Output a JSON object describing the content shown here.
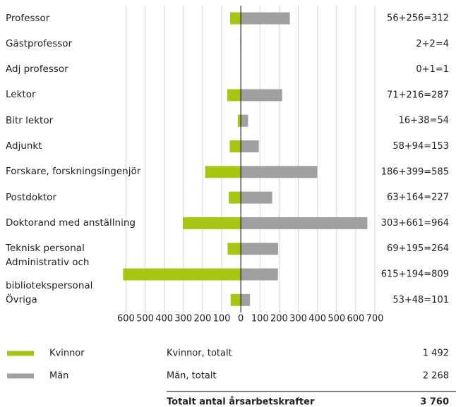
{
  "chart_data": {
    "type": "butterfly",
    "categories": [
      "Professor",
      "Gästprofessor",
      "Adj professor",
      "Lektor",
      "Bitr lektor",
      "Adjunkt",
      "Forskare, forskningsingenjör",
      "Postdoktor",
      "Doktorand med anställning",
      "Teknisk personal",
      "Administrativ och bibliotekspersonal",
      "Övriga"
    ],
    "series": [
      {
        "name": "Kvinnor",
        "color": "#a6c614",
        "side": "left",
        "values": [
          56,
          2,
          0,
          71,
          16,
          58,
          186,
          63,
          303,
          69,
          615,
          53
        ]
      },
      {
        "name": "Män",
        "color": "#a0a0a3",
        "side": "right",
        "values": [
          256,
          2,
          1,
          216,
          38,
          94,
          399,
          164,
          661,
          195,
          194,
          48
        ]
      }
    ],
    "value_labels": [
      "56+256=312",
      "2+2=4",
      "0+1=1",
      "71+216=287",
      "16+38=54",
      "58+94=153",
      "186+399=585",
      "63+164=227",
      "303+661=964",
      "69+195=264",
      "615+194=809",
      "53+48=101"
    ],
    "xlim": [
      -620,
      700
    ],
    "xticks": [
      {
        "value": -600,
        "label": "600"
      },
      {
        "value": -500,
        "label": "500"
      },
      {
        "value": -400,
        "label": "400"
      },
      {
        "value": -300,
        "label": "300"
      },
      {
        "value": -200,
        "label": "200"
      },
      {
        "value": -100,
        "label": "100"
      },
      0,
      100,
      200,
      300,
      400,
      500,
      600,
      700
    ],
    "grid": true,
    "totals": [
      {
        "label": "Kvinnor, totalt",
        "value": "1 492"
      },
      {
        "label": "Män, totalt",
        "value": "2 268"
      },
      {
        "label": "Totalt antal årsarbetskrafter",
        "value": "3 760"
      }
    ]
  }
}
